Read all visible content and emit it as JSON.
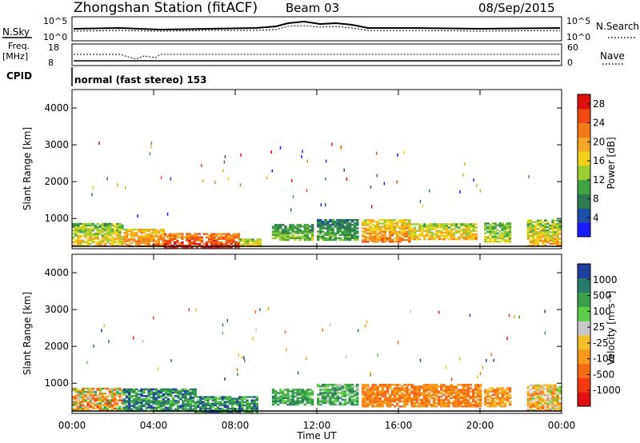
{
  "header": {
    "station": "Zhongshan Station (fitACF)",
    "beam": "Beam 03",
    "date": "08/Sep/2015"
  },
  "top_panels": {
    "nsky_label": "N.Sky",
    "nsearch_label": "N.Search",
    "nsky_ticks": [
      "10^5",
      "10^0"
    ],
    "nsearch_ticks": [
      "10^5",
      "10^0"
    ],
    "freq_label": "Freq.",
    "freq_unit": "[MHz]",
    "freq_ticks": [
      "18",
      "8"
    ],
    "nave_label": "Nave",
    "nave_ticks": [
      "60",
      "0"
    ],
    "cpid_label": "CPID",
    "cpid_text": "normal (fast stereo) 153"
  },
  "colors": {
    "power_scale": [
      "#1a1aff",
      "#1e4fa8",
      "#2f7a4e",
      "#3fa343",
      "#9ccc35",
      "#f0d21a",
      "#f5a623",
      "#f27a1a",
      "#ee4a12",
      "#e01010"
    ],
    "velocity_scale": [
      "#e01010",
      "#f23a10",
      "#f56a14",
      "#f79a1c",
      "#f5c02a",
      "#c8c8c8",
      "#5cd04a",
      "#3aa04a",
      "#2a7a6a",
      "#2040a0"
    ]
  },
  "chart_data": [
    {
      "type": "heatmap",
      "name": "power",
      "xlabel": "Time UT",
      "ylabel": "Slant Range [km]",
      "x_ticks": [
        "00:00",
        "04:00",
        "08:00",
        "12:00",
        "16:00",
        "20:00",
        "00:00"
      ],
      "xlim": [
        0,
        24
      ],
      "ylim": [
        180,
        4500
      ],
      "y_ticks": [
        1000,
        2000,
        3000,
        4000
      ],
      "colorbar": {
        "label": "Power [dB]",
        "ticks": [
          "4",
          "8",
          "12",
          "16",
          "20",
          "24",
          "28"
        ],
        "range": [
          0,
          30
        ]
      },
      "regions": [
        {
          "t0": 0.0,
          "t1": 2.5,
          "r0": 250,
          "r1": 850,
          "v0": 8,
          "v1": 22
        },
        {
          "t0": 2.5,
          "t1": 4.5,
          "r0": 230,
          "r1": 700,
          "v0": 14,
          "v1": 26
        },
        {
          "t0": 4.5,
          "t1": 8.2,
          "r0": 200,
          "r1": 600,
          "v0": 18,
          "v1": 30
        },
        {
          "t0": 8.2,
          "t1": 9.2,
          "r0": 230,
          "r1": 450,
          "v0": 10,
          "v1": 20
        },
        {
          "t0": 9.8,
          "t1": 11.8,
          "r0": 400,
          "r1": 850,
          "v0": 6,
          "v1": 16
        },
        {
          "t0": 12.0,
          "t1": 14.0,
          "r0": 400,
          "r1": 950,
          "v0": 4,
          "v1": 14
        },
        {
          "t0": 14.2,
          "t1": 16.5,
          "r0": 350,
          "r1": 950,
          "v0": 12,
          "v1": 26
        },
        {
          "t0": 16.5,
          "t1": 19.8,
          "r0": 420,
          "r1": 850,
          "v0": 10,
          "v1": 22
        },
        {
          "t0": 20.2,
          "t1": 21.5,
          "r0": 350,
          "r1": 850,
          "v0": 8,
          "v1": 18
        },
        {
          "t0": 22.3,
          "t1": 23.9,
          "r0": 250,
          "r1": 950,
          "v0": 8,
          "v1": 24
        }
      ]
    },
    {
      "type": "heatmap",
      "name": "velocity",
      "xlabel": "Time UT",
      "ylabel": "Slant Range [km]",
      "x_ticks": [
        "00:00",
        "04:00",
        "08:00",
        "12:00",
        "16:00",
        "20:00",
        "00:00"
      ],
      "xlim": [
        0,
        24
      ],
      "ylim": [
        180,
        4500
      ],
      "y_ticks": [
        1000,
        2000,
        3000,
        4000
      ],
      "colorbar": {
        "label": "Velocity [m s⁻¹]",
        "ticks": [
          "1000",
          "500",
          "100",
          "25",
          "-25",
          "-100",
          "-500",
          "-1000"
        ]
      },
      "regions": [
        {
          "t0": 0.0,
          "t1": 2.5,
          "r0": 250,
          "r1": 850,
          "v0": 1,
          "v1": 7
        },
        {
          "t0": 2.5,
          "t1": 6.0,
          "r0": 230,
          "r1": 850,
          "v0": 6,
          "v1": 9
        },
        {
          "t0": 6.0,
          "t1": 9.0,
          "r0": 200,
          "r1": 650,
          "v0": 6,
          "v1": 9
        },
        {
          "t0": 9.8,
          "t1": 11.8,
          "r0": 400,
          "r1": 850,
          "v0": 6,
          "v1": 8
        },
        {
          "t0": 12.0,
          "t1": 14.0,
          "r0": 400,
          "r1": 950,
          "v0": 5,
          "v1": 8
        },
        {
          "t0": 14.2,
          "t1": 20.0,
          "r0": 350,
          "r1": 950,
          "v0": 2,
          "v1": 3
        },
        {
          "t0": 20.2,
          "t1": 21.5,
          "r0": 350,
          "r1": 850,
          "v0": 2,
          "v1": 4
        },
        {
          "t0": 22.3,
          "t1": 23.9,
          "r0": 250,
          "r1": 950,
          "v0": 2,
          "v1": 6
        }
      ]
    }
  ]
}
